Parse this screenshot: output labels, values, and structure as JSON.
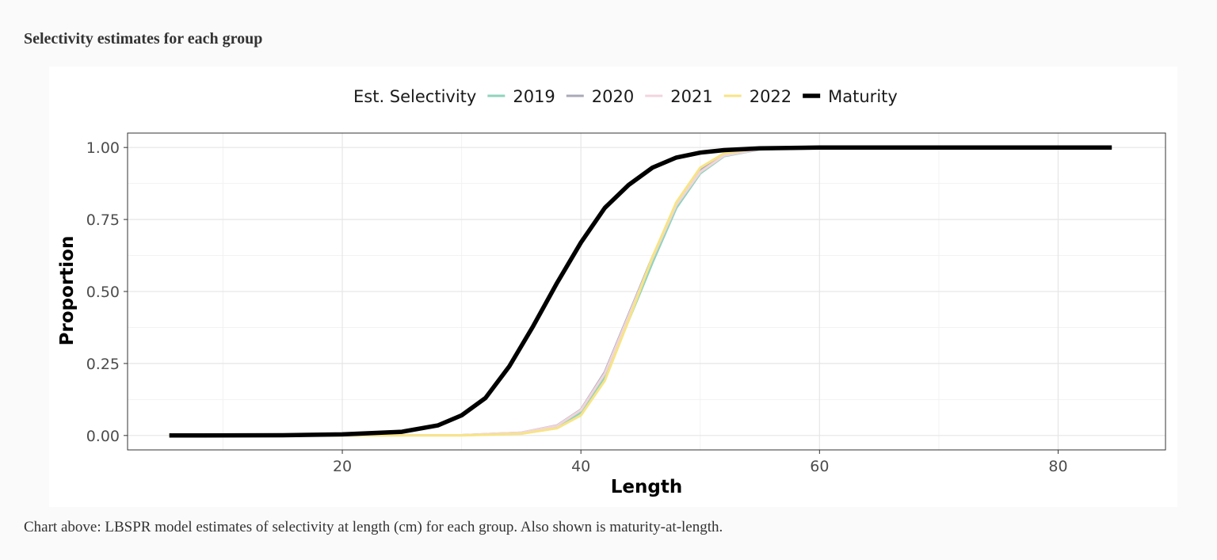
{
  "page": {
    "heading": "Selectivity estimates for each group",
    "caption": "Chart above: LBSPR model estimates of selectivity at length (cm) for each group. Also shown is maturity-at-length."
  },
  "chart_data": {
    "type": "line",
    "title": "",
    "xlabel": "Length",
    "ylabel": "Proportion",
    "xlim": [
      2,
      89
    ],
    "ylim": [
      -0.05,
      1.05
    ],
    "x_ticks": [
      20,
      40,
      60,
      80
    ],
    "y_ticks": [
      0,
      0.25,
      0.5,
      0.75,
      1
    ],
    "y_tick_labels": [
      "0.00",
      "0.25",
      "0.50",
      "0.75",
      "1.00"
    ],
    "grid": true,
    "legend": {
      "title": "Est. Selectivity",
      "position": "top",
      "entries": [
        "2019",
        "2020",
        "2021",
        "2022",
        "Maturity"
      ]
    },
    "series": [
      {
        "name": "2019",
        "color": "#8fd3bd",
        "line_weight": "normal",
        "x": [
          5.5,
          30,
          35,
          38,
          40,
          42,
          44,
          45,
          46,
          48,
          50,
          52,
          55,
          60,
          70,
          84.5
        ],
        "y": [
          0.0,
          0.001,
          0.008,
          0.03,
          0.08,
          0.2,
          0.4,
          0.5,
          0.6,
          0.79,
          0.91,
          0.97,
          0.993,
          1.0,
          1.0,
          1.0
        ]
      },
      {
        "name": "2020",
        "color": "#a8aab8",
        "line_weight": "normal",
        "x": [
          5.5,
          30,
          35,
          38,
          40,
          42,
          44,
          45,
          46,
          48,
          50,
          52,
          55,
          60,
          70,
          84.5
        ],
        "y": [
          0.0,
          0.001,
          0.01,
          0.035,
          0.09,
          0.22,
          0.42,
          0.52,
          0.62,
          0.8,
          0.92,
          0.975,
          0.995,
          1.0,
          1.0,
          1.0
        ]
      },
      {
        "name": "2021",
        "color": "#f2d4dc",
        "line_weight": "normal",
        "x": [
          5.5,
          30,
          35,
          38,
          40,
          42,
          44,
          45,
          46,
          48,
          50,
          52,
          55,
          60,
          70,
          84.5
        ],
        "y": [
          0.0,
          0.001,
          0.01,
          0.034,
          0.088,
          0.215,
          0.415,
          0.515,
          0.615,
          0.8,
          0.915,
          0.972,
          0.994,
          1.0,
          1.0,
          1.0
        ]
      },
      {
        "name": "2022",
        "color": "#f7e486",
        "line_weight": "normal",
        "x": [
          5.5,
          30,
          35,
          38,
          40,
          42,
          44,
          45,
          46,
          48,
          50,
          52,
          55,
          60,
          70,
          84.5
        ],
        "y": [
          0.0,
          0.0,
          0.006,
          0.025,
          0.07,
          0.19,
          0.4,
          0.51,
          0.62,
          0.81,
          0.93,
          0.98,
          0.997,
          1.0,
          1.0,
          1.0
        ]
      },
      {
        "name": "Maturity",
        "color": "#000000",
        "line_weight": "thick",
        "x": [
          5.5,
          15,
          20,
          25,
          28,
          30,
          32,
          34,
          36,
          38,
          40,
          42,
          44,
          46,
          48,
          50,
          52,
          55,
          60,
          70,
          84.5
        ],
        "y": [
          0.0,
          0.001,
          0.004,
          0.013,
          0.035,
          0.07,
          0.13,
          0.24,
          0.38,
          0.53,
          0.67,
          0.79,
          0.87,
          0.93,
          0.965,
          0.982,
          0.991,
          0.997,
          1.0,
          1.0,
          1.0
        ]
      }
    ]
  }
}
